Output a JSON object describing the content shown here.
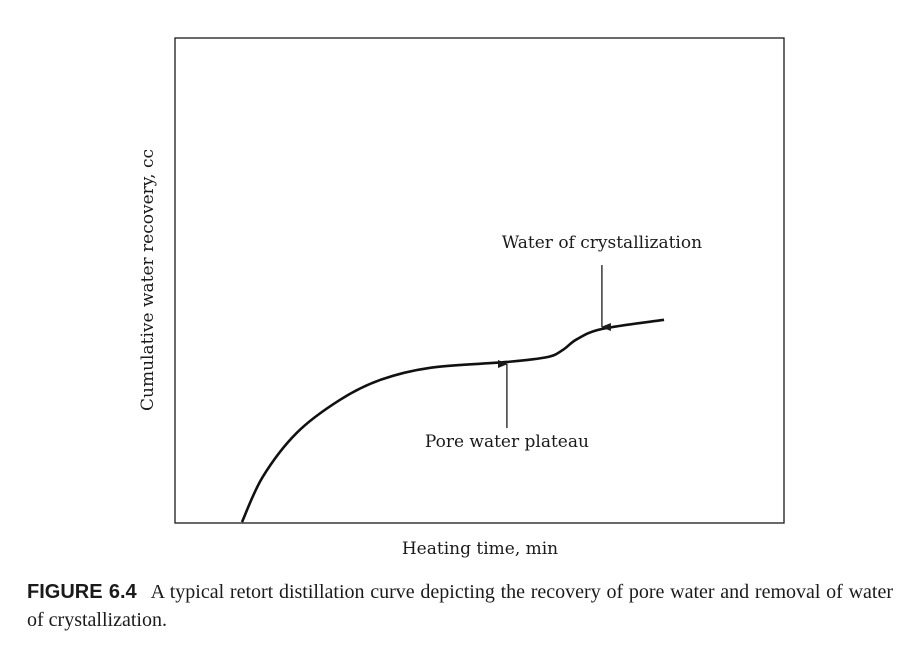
{
  "chart_data": {
    "type": "line",
    "title": "",
    "xlabel": "Heating time, min",
    "ylabel": "Cumulative water recovery, cc",
    "xlim": [
      0,
      100
    ],
    "ylim": [
      0,
      100
    ],
    "grid": false,
    "series": [
      {
        "name": "Retort distillation curve",
        "x": [
          11.0,
          14.4,
          20.0,
          27.1,
          33.7,
          41.9,
          54.5,
          61.1,
          63.7,
          66.0,
          70.1,
          80.3
        ],
        "y": [
          0.2,
          9.5,
          18.6,
          25.4,
          29.5,
          32.0,
          33.2,
          34.2,
          35.7,
          37.9,
          40.0,
          41.9
        ]
      }
    ],
    "annotations": [
      {
        "text": "Water of crystallization",
        "point": [
          70.1,
          40.0
        ],
        "arrow_from": "above"
      },
      {
        "text": "Pore water plateau",
        "point": [
          54.5,
          33.2
        ],
        "arrow_from": "below"
      }
    ]
  },
  "caption": {
    "label": "FIGURE 6.4",
    "text": "A typical retort distillation curve depicting the recovery of pore water and removal of water of crystallization."
  }
}
